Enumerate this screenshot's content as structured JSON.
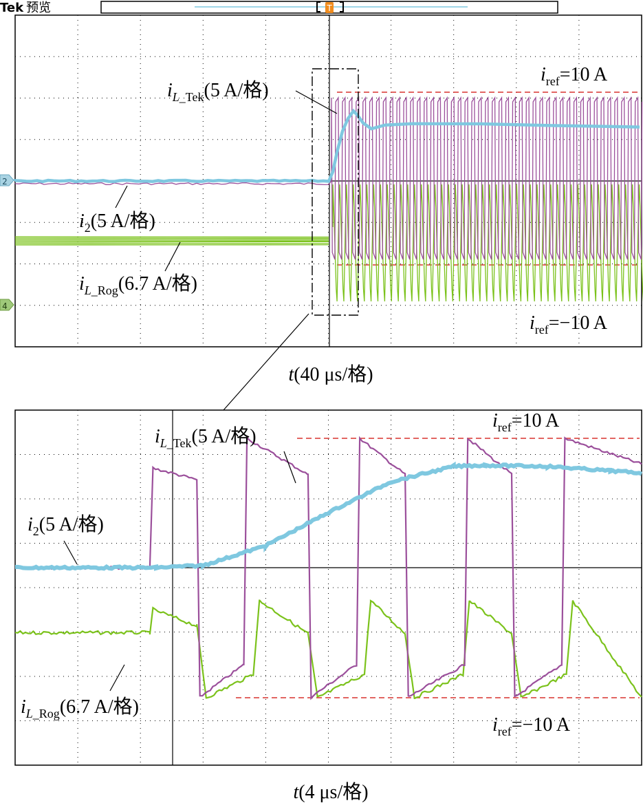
{
  "header": {
    "brand": "Tek",
    "mode": "预览",
    "trigger_marker": "T",
    "channel_markers": [
      "2",
      "4"
    ]
  },
  "colors": {
    "iL_Tek": "#9b4f9b",
    "i2": "#7fc8e0",
    "iL_Rog": "#7bc21b",
    "ref": "#d9322e",
    "trigger": "#f08c1e"
  },
  "chart_data": [
    {
      "type": "line",
      "panel": "overview",
      "xlabel": "t(40 μs/格)",
      "x_unit": "μs",
      "x_per_div": 40,
      "divisions": {
        "x": 10,
        "y": 8
      },
      "grid": true,
      "series": [
        {
          "name": "i_L_Tek(5 A/格)",
          "description": "PWM switching between +10 A and -10 A after step",
          "x": [
            -120,
            -4,
            0,
            240
          ],
          "values": [
            0,
            0,
            10,
            10
          ]
        },
        {
          "name": "i_2(5 A/格)",
          "x": [
            -240,
            -4,
            4,
            10,
            20,
            40,
            80,
            240
          ],
          "values": [
            0,
            0,
            5,
            9,
            6.5,
            6.2,
            6,
            5.8
          ]
        },
        {
          "name": "i_L_Rog(6.7 A/格)",
          "x": [
            -240,
            0,
            240
          ],
          "values": [
            -3.3,
            -3.3,
            -10
          ]
        }
      ],
      "annotations": [
        "i_ref=10 A",
        "i_ref=−10 A"
      ]
    },
    {
      "type": "line",
      "panel": "zoom",
      "xlabel": "t(4 μs/格)",
      "x_unit": "μs",
      "x_per_div": 4,
      "divisions": {
        "x": 10,
        "y": 8
      },
      "grid": true,
      "series": [
        {
          "name": "i_L_Tek(5 A/格)",
          "x": [
            0,
            8.6,
            8.8,
            11.6,
            11.8,
            14.6,
            14.8,
            18.7,
            18.9,
            21.8,
            22,
            24.9,
            25.1,
            28.7,
            28.9,
            31.7,
            31.9,
            34.9,
            35.1,
            40
          ],
          "values": [
            0,
            0,
            7.7,
            6.8,
            -10,
            -7.5,
            10,
            7.2,
            -10,
            -7.5,
            10,
            7.2,
            -10,
            -7.5,
            10,
            7.2,
            -10,
            -7.5,
            10,
            8
          ]
        },
        {
          "name": "i_2(5 A/格)",
          "x": [
            0,
            9,
            12,
            16,
            20,
            24,
            28,
            30,
            34,
            38,
            40
          ],
          "values": [
            0,
            0,
            0.2,
            2,
            5,
            7.8,
            9.2,
            9.3,
            9.2,
            8.8,
            8.6
          ]
        },
        {
          "name": "i_L_Rog(6.7 A/格)",
          "x": [
            0,
            8.6,
            8.8,
            11.6,
            12.2,
            15.2,
            15.6,
            18.7,
            19.3,
            22.3,
            22.7,
            24.9,
            25.5,
            28.6,
            29,
            31.7,
            32.3,
            35.2,
            35.6,
            40
          ],
          "values": [
            -6.7,
            -6.7,
            -4.3,
            -6,
            -13.4,
            -11,
            -3.4,
            -6.8,
            -13.4,
            -11,
            -3.4,
            -6.8,
            -13.4,
            -11,
            -3.4,
            -6.8,
            -13.4,
            -11,
            -3.4,
            -13.4
          ]
        }
      ],
      "annotations": [
        "i_ref=10 A",
        "i_ref=−10 A"
      ]
    }
  ]
}
